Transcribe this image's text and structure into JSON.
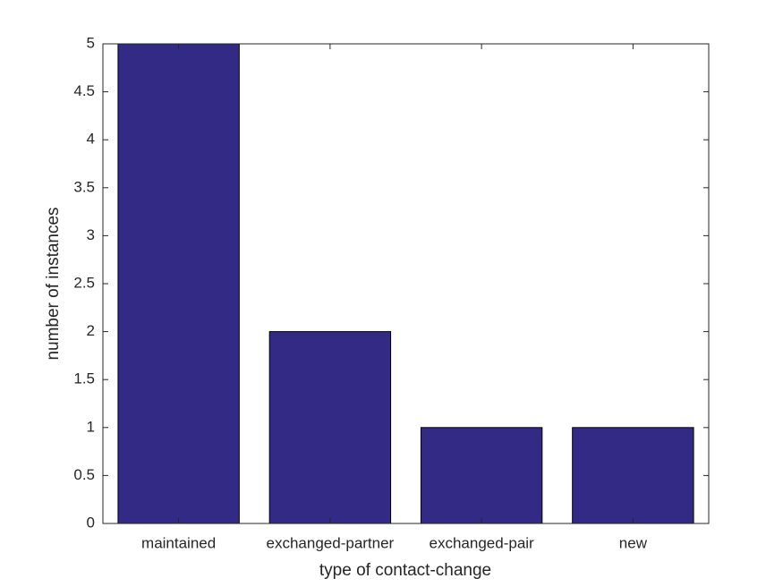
{
  "chart_data": {
    "type": "bar",
    "xlabel": "type of contact-change",
    "ylabel": "number of instances",
    "categories": [
      "maintained",
      "exchanged-partner",
      "exchanged-pair",
      "new"
    ],
    "values": [
      5,
      2,
      1,
      1
    ],
    "color": "#332a86",
    "ylim": [
      0,
      5
    ],
    "yticks": [
      0,
      0.5,
      1,
      1.5,
      2,
      2.5,
      3,
      3.5,
      4,
      4.5,
      5
    ],
    "grid": false
  }
}
